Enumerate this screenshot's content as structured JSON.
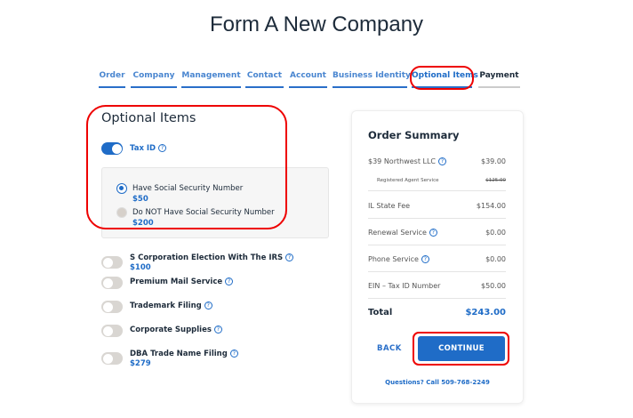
{
  "title": "Form A New Company",
  "tabs": [
    {
      "label": "Order",
      "state": "done"
    },
    {
      "label": "Company",
      "state": "done"
    },
    {
      "label": "Management",
      "state": "done"
    },
    {
      "label": "Contact",
      "state": "done"
    },
    {
      "label": "Account",
      "state": "done"
    },
    {
      "label": "Business Identity",
      "state": "done"
    },
    {
      "label": "Optional Items",
      "state": "active"
    },
    {
      "label": "Payment",
      "state": "todo"
    }
  ],
  "optional": {
    "heading": "Optional Items",
    "tax_id": {
      "label": "Tax ID",
      "on": true,
      "options": [
        {
          "label": "Have Social Security Number",
          "price": "$50",
          "selected": true
        },
        {
          "label": "Do NOT Have Social Security Number",
          "price": "$200",
          "selected": false
        }
      ]
    },
    "items": [
      {
        "label": "S Corporation Election With The IRS",
        "price": "$100",
        "on": false
      },
      {
        "label": "Premium Mail Service",
        "price": "",
        "on": false
      },
      {
        "label": "Trademark Filing",
        "price": "",
        "on": false
      },
      {
        "label": "Corporate Supplies",
        "price": "",
        "on": false
      },
      {
        "label": "DBA Trade Name Filing",
        "price": "$279",
        "on": false
      }
    ]
  },
  "summary": {
    "heading": "Order Summary",
    "lines": [
      {
        "label": "$39 Northwest LLC",
        "value": "$39.00",
        "help": true
      },
      {
        "label": "Registered Agent Service",
        "value": "$125.00",
        "sub": true
      },
      {
        "label": "IL State Fee",
        "value": "$154.00"
      },
      {
        "label": "Renewal Service",
        "value": "$0.00",
        "help": true
      },
      {
        "label": "Phone Service",
        "value": "$0.00",
        "help": true
      },
      {
        "label": "EIN – Tax ID Number",
        "value": "$50.00"
      }
    ],
    "total_label": "Total",
    "total": "$243.00",
    "back": "BACK",
    "continue": "CONTINUE",
    "questions": "Questions? Call 509-768-2249"
  },
  "colors": {
    "accent": "#1f6cc7",
    "highlight": "#ee0000"
  }
}
